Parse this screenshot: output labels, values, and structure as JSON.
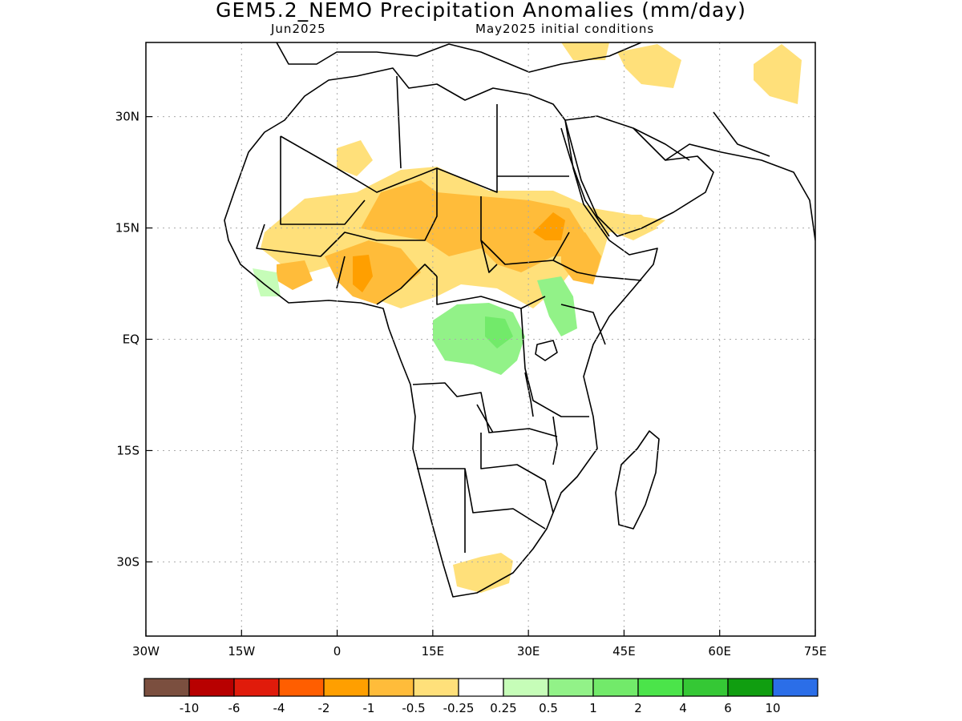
{
  "header": {
    "title": "GEM5.2_NEMO Precipitation Anomalies (mm/day)",
    "valid_month": "Jun2025",
    "init_conditions": "May2025 initial conditions"
  },
  "map": {
    "projection": "lat-lon",
    "extent": {
      "lon_min": -30,
      "lon_max": 75,
      "lat_min": -40,
      "lat_max": 40
    },
    "lon_ticks": [
      {
        "value": -30,
        "label": "30W"
      },
      {
        "value": -15,
        "label": "15W"
      },
      {
        "value": 0,
        "label": "0"
      },
      {
        "value": 15,
        "label": "15E"
      },
      {
        "value": 30,
        "label": "30E"
      },
      {
        "value": 45,
        "label": "45E"
      },
      {
        "value": 60,
        "label": "60E"
      },
      {
        "value": 75,
        "label": "75E"
      }
    ],
    "lat_ticks": [
      {
        "value": 30,
        "label": "30N"
      },
      {
        "value": 15,
        "label": "15N"
      },
      {
        "value": 0,
        "label": "EQ"
      },
      {
        "value": -15,
        "label": "15S"
      },
      {
        "value": -30,
        "label": "30S"
      }
    ],
    "gridlines": "dotted",
    "colors": {
      "coast": "#000000",
      "grid": "#aaaaaa",
      "frame": "#000000"
    }
  },
  "legend": {
    "colors": [
      "#7b4f3f",
      "#b80000",
      "#e01b0b",
      "#ff5e00",
      "#ff9f00",
      "#ffbc3a",
      "#ffe07a",
      "#ffffff",
      "#c6fdb8",
      "#92f288",
      "#72ea6a",
      "#4be44a",
      "#35c835",
      "#109e10",
      "#2b6ee8"
    ],
    "labels": [
      "-10",
      "-6",
      "-4",
      "-2",
      "-1",
      "-0.5",
      "-0.25",
      "0.25",
      "0.5",
      "1",
      "2",
      "4",
      "6",
      "10"
    ]
  },
  "anomaly_regions": [
    {
      "region": "Sahel band (Mali–Niger–Chad–Sudan)",
      "class": "-1 to -0.5",
      "color": "#ffbc3a"
    },
    {
      "region": "West Africa coast / Nigeria",
      "class": "-2 to -1",
      "color": "#ff9f00"
    },
    {
      "region": "Congo basin / Lake Victoria",
      "class": "0.25 to 1",
      "color": "#92f288"
    },
    {
      "region": "South Africa / Arabian Peninsula / Iran",
      "class": "-0.5 to -0.25",
      "color": "#ffe07a"
    }
  ]
}
